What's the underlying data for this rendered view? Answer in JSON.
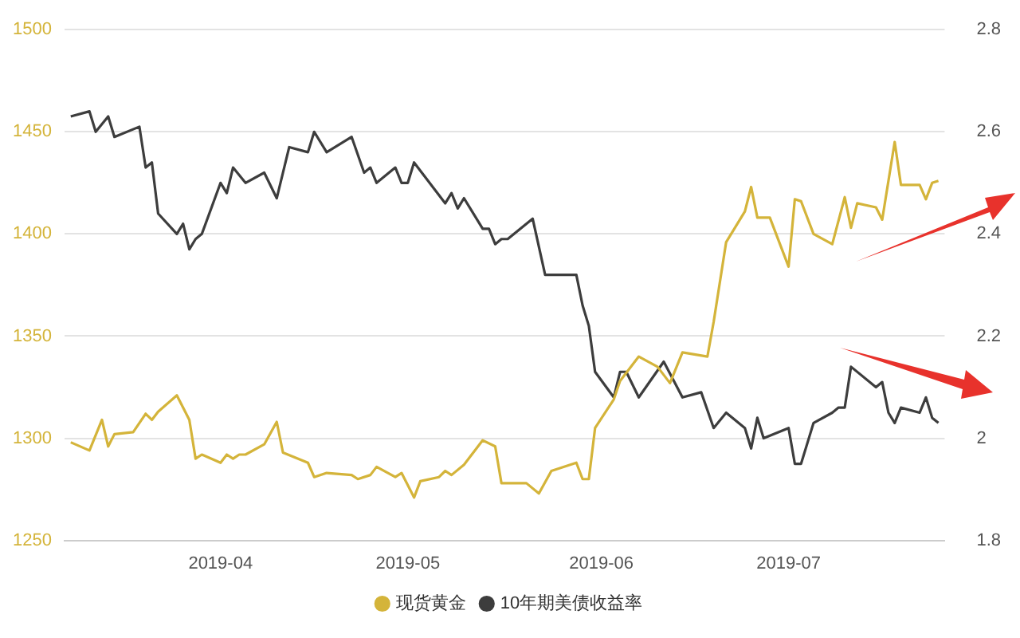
{
  "chart_data": {
    "type": "line",
    "legend": "bottom",
    "grid": "y",
    "xlim": [
      "2019-03-07",
      "2019-07-26"
    ],
    "xticks": [
      {
        "value": "2019-04-01",
        "label": "2019-04"
      },
      {
        "value": "2019-05-01",
        "label": "2019-05"
      },
      {
        "value": "2019-06-01",
        "label": "2019-06"
      },
      {
        "value": "2019-07-01",
        "label": "2019-07"
      }
    ],
    "ylim": [
      1250,
      1500
    ],
    "yticks": [
      1250,
      1300,
      1350,
      1400,
      1450,
      1500
    ],
    "y2lim": [
      1.8,
      2.8
    ],
    "y2ticks": [
      1.8,
      2,
      2.2,
      2.4,
      2.6,
      2.8
    ],
    "series": [
      {
        "name": "现货黄金",
        "color": "#d4b43a",
        "x": [
          "2019-03-08",
          "2019-03-11",
          "2019-03-13",
          "2019-03-14",
          "2019-03-15",
          "2019-03-18",
          "2019-03-20",
          "2019-03-21",
          "2019-03-22",
          "2019-03-25",
          "2019-03-27",
          "2019-03-28",
          "2019-03-29",
          "2019-04-01",
          "2019-04-02",
          "2019-04-03",
          "2019-04-04",
          "2019-04-05",
          "2019-04-08",
          "2019-04-10",
          "2019-04-11",
          "2019-04-15",
          "2019-04-16",
          "2019-04-18",
          "2019-04-22",
          "2019-04-23",
          "2019-04-25",
          "2019-04-26",
          "2019-04-29",
          "2019-04-30",
          "2019-05-02",
          "2019-05-03",
          "2019-05-06",
          "2019-05-07",
          "2019-05-08",
          "2019-05-10",
          "2019-05-13",
          "2019-05-15",
          "2019-05-16",
          "2019-05-20",
          "2019-05-22",
          "2019-05-24",
          "2019-05-28",
          "2019-05-29",
          "2019-05-30",
          "2019-05-31",
          "2019-06-03",
          "2019-06-04",
          "2019-06-07",
          "2019-06-10",
          "2019-06-12",
          "2019-06-14",
          "2019-06-18",
          "2019-06-19",
          "2019-06-21",
          "2019-06-24",
          "2019-06-25",
          "2019-06-26",
          "2019-06-28",
          "2019-07-01",
          "2019-07-02",
          "2019-07-03",
          "2019-07-05",
          "2019-07-08",
          "2019-07-10",
          "2019-07-11",
          "2019-07-12",
          "2019-07-15",
          "2019-07-16",
          "2019-07-18",
          "2019-07-19",
          "2019-07-22",
          "2019-07-23",
          "2019-07-24",
          "2019-07-25"
        ],
        "values": [
          1298,
          1294,
          1309,
          1296,
          1302,
          1303,
          1312,
          1309,
          1313,
          1321,
          1309,
          1290,
          1292,
          1288,
          1292,
          1290,
          1292,
          1292,
          1297,
          1308,
          1293,
          1288,
          1281,
          1283,
          1282,
          1280,
          1282,
          1286,
          1281,
          1283,
          1271,
          1279,
          1281,
          1284,
          1282,
          1287,
          1299,
          1296,
          1278,
          1278,
          1273,
          1284,
          1288,
          1280,
          1280,
          1305,
          1319,
          1328,
          1340,
          1335,
          1327,
          1342,
          1340,
          1357,
          1396,
          1411,
          1423,
          1408,
          1408,
          1384,
          1417,
          1416,
          1400,
          1395,
          1418,
          1403,
          1415,
          1413,
          1407,
          1445,
          1424,
          1424,
          1417,
          1425,
          1426
        ]
      },
      {
        "name": "10年期美债收益率",
        "color": "#3d3d3d",
        "axis": "y2",
        "x": [
          "2019-03-08",
          "2019-03-11",
          "2019-03-12",
          "2019-03-14",
          "2019-03-15",
          "2019-03-19",
          "2019-03-20",
          "2019-03-21",
          "2019-03-22",
          "2019-03-25",
          "2019-03-26",
          "2019-03-27",
          "2019-03-28",
          "2019-03-29",
          "2019-04-01",
          "2019-04-02",
          "2019-04-03",
          "2019-04-05",
          "2019-04-08",
          "2019-04-10",
          "2019-04-12",
          "2019-04-15",
          "2019-04-16",
          "2019-04-18",
          "2019-04-22",
          "2019-04-24",
          "2019-04-25",
          "2019-04-26",
          "2019-04-29",
          "2019-04-30",
          "2019-05-01",
          "2019-05-02",
          "2019-05-07",
          "2019-05-08",
          "2019-05-09",
          "2019-05-10",
          "2019-05-13",
          "2019-05-14",
          "2019-05-15",
          "2019-05-16",
          "2019-05-17",
          "2019-05-21",
          "2019-05-23",
          "2019-05-28",
          "2019-05-29",
          "2019-05-30",
          "2019-05-31",
          "2019-06-03",
          "2019-06-04",
          "2019-06-05",
          "2019-06-07",
          "2019-06-11",
          "2019-06-14",
          "2019-06-17",
          "2019-06-19",
          "2019-06-21",
          "2019-06-24",
          "2019-06-25",
          "2019-06-26",
          "2019-06-27",
          "2019-07-01",
          "2019-07-02",
          "2019-07-03",
          "2019-07-05",
          "2019-07-08",
          "2019-07-09",
          "2019-07-10",
          "2019-07-11",
          "2019-07-15",
          "2019-07-16",
          "2019-07-17",
          "2019-07-18",
          "2019-07-19",
          "2019-07-22",
          "2019-07-23",
          "2019-07-24",
          "2019-07-25"
        ],
        "values": [
          2.63,
          2.64,
          2.6,
          2.63,
          2.59,
          2.61,
          2.53,
          2.54,
          2.44,
          2.4,
          2.42,
          2.37,
          2.39,
          2.4,
          2.5,
          2.48,
          2.53,
          2.5,
          2.52,
          2.47,
          2.57,
          2.56,
          2.6,
          2.56,
          2.59,
          2.52,
          2.53,
          2.5,
          2.53,
          2.5,
          2.5,
          2.54,
          2.46,
          2.48,
          2.45,
          2.47,
          2.41,
          2.41,
          2.38,
          2.39,
          2.39,
          2.43,
          2.32,
          2.32,
          2.26,
          2.22,
          2.13,
          2.08,
          2.13,
          2.13,
          2.08,
          2.15,
          2.08,
          2.09,
          2.02,
          2.05,
          2.02,
          1.98,
          2.04,
          2.0,
          2.02,
          1.95,
          1.95,
          2.03,
          2.05,
          2.06,
          2.06,
          2.14,
          2.1,
          2.11,
          2.05,
          2.03,
          2.06,
          2.05,
          2.08,
          2.04,
          2.03
        ]
      }
    ]
  }
}
